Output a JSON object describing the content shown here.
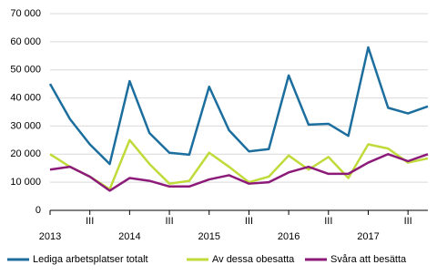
{
  "chart_data": {
    "type": "line",
    "categories": [
      "2013",
      null,
      "III",
      null,
      "2014",
      null,
      "III",
      null,
      "2015",
      null,
      "III",
      null,
      "2016",
      null,
      "III",
      null,
      "2017",
      null,
      "III",
      null
    ],
    "series": [
      {
        "name": "Lediga arbetsplatser totalt",
        "color": "#1c6e9e",
        "values": [
          45000,
          32500,
          23500,
          16500,
          46000,
          27500,
          20500,
          19800,
          44000,
          28500,
          21000,
          21800,
          48000,
          30500,
          30800,
          26500,
          58000,
          36500,
          34500,
          37000
        ]
      },
      {
        "name": "Av dessa obesatta",
        "color": "#bfdb3a",
        "values": [
          20000,
          15500,
          12000,
          7500,
          25000,
          16500,
          9500,
          10500,
          20500,
          15500,
          10000,
          12000,
          19500,
          14500,
          19000,
          11500,
          23500,
          22000,
          17000,
          18500
        ]
      },
      {
        "name": "Svåra att besätta",
        "color": "#8c1a78",
        "values": [
          14500,
          15500,
          12000,
          7000,
          11500,
          10500,
          8500,
          8500,
          11000,
          12500,
          9500,
          10000,
          13500,
          15500,
          13000,
          13000,
          17000,
          20000,
          17500,
          20000
        ]
      }
    ],
    "ylim": [
      0,
      70000
    ],
    "yticks": [
      0,
      {
        "value": 10000,
        "label": "10 000"
      },
      {
        "value": 20000,
        "label": "20 000"
      },
      {
        "value": 30000,
        "label": "30 000"
      },
      {
        "value": 40000,
        "label": "40 000"
      },
      {
        "value": 50000,
        "label": "50 000"
      },
      {
        "value": 60000,
        "label": "60 000"
      },
      {
        "value": 70000,
        "label": "70 000"
      }
    ],
    "grid": true
  }
}
